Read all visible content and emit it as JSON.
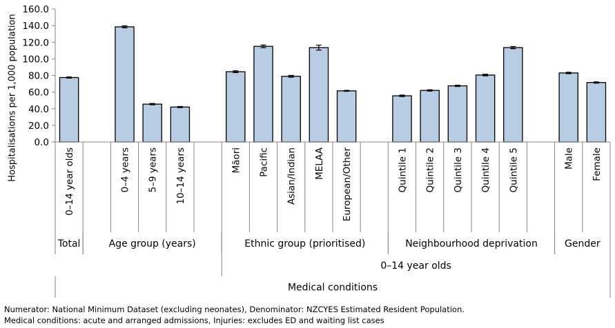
{
  "chart_data": {
    "type": "bar",
    "ylabel": "Hospitalisations per 1,000 population",
    "ylim": [
      0,
      160
    ],
    "yticks": [
      "0.0",
      "20.0",
      "40.0",
      "60.0",
      "80.0",
      "100.0",
      "120.0",
      "140.0",
      "160.0"
    ],
    "grid": false,
    "bar_color": "#b8cce4",
    "bar_edge_color": "#000000",
    "categories": [
      "0–14 year olds",
      "",
      "0–4 years",
      "5–9 years",
      "10–14 years",
      "",
      "Māori",
      "Pacific",
      "Asian/Indian",
      "MELAA",
      "European/Other",
      "",
      "Quintile 1",
      "Quintile 2",
      "Quintile 3",
      "Quintile 4",
      "Quintile 5",
      "",
      "Male",
      "Female"
    ],
    "values": [
      77.5,
      null,
      138.5,
      45.5,
      42,
      null,
      84.5,
      115,
      79,
      113.5,
      61.5,
      null,
      55.5,
      62,
      67.5,
      80.5,
      113.5,
      null,
      83,
      71.5
    ],
    "error_low": [
      76.8,
      null,
      137.3,
      44.7,
      41.3,
      null,
      83.4,
      113.4,
      77.9,
      110.5,
      60.9,
      null,
      54.6,
      61.2,
      66.7,
      79.5,
      112.2,
      null,
      82.1,
      70.7
    ],
    "error_high": [
      78.2,
      null,
      139.7,
      46.3,
      42.7,
      null,
      85.6,
      116.6,
      80.1,
      116.5,
      62.1,
      null,
      56.4,
      62.8,
      68.3,
      81.5,
      114.8,
      null,
      83.9,
      72.3
    ],
    "groups_level1": [
      {
        "label": "Total",
        "start": 0,
        "end": 1
      },
      {
        "label": "Age group (years)",
        "start": 1,
        "end": 6
      },
      {
        "label": "Ethnic group (prioritised)",
        "start": 6,
        "end": 12
      },
      {
        "label": "Neighbourhood deprivation",
        "start": 12,
        "end": 18
      },
      {
        "label": "Gender",
        "start": 18,
        "end": 20
      }
    ],
    "groups_level2": [
      {
        "label": "0–14 year olds",
        "start": 6,
        "end": 20
      }
    ],
    "groups_level3": [
      {
        "label": "Medical conditions",
        "start": 0,
        "end": 20
      }
    ]
  },
  "notes": {
    "line1": "Numerator: National Minimum Dataset (excluding neonates), Denominator: NZCYES Estimated Resident Population.",
    "line2": "Medical conditions: acute and arranged admissions, Injuries: excludes ED and waiting list cases"
  }
}
